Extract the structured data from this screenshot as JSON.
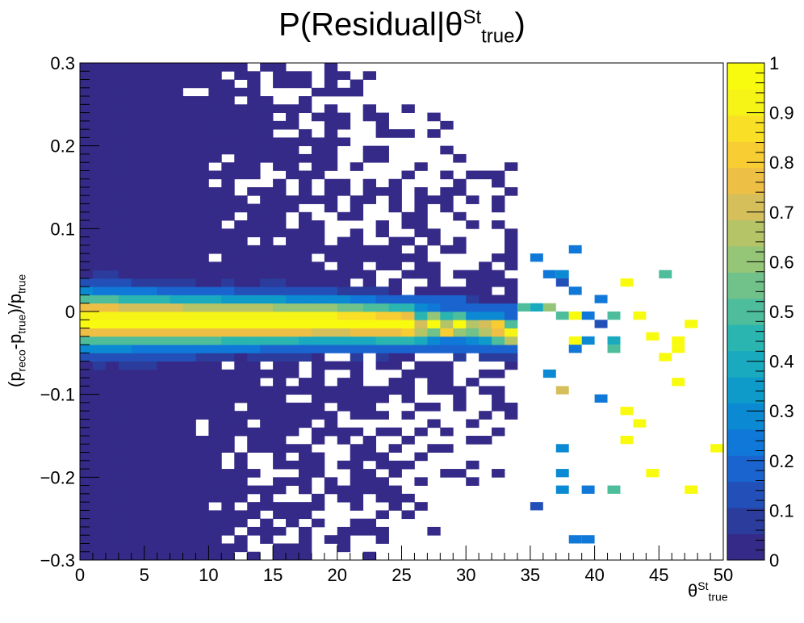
{
  "title_main": "P(Residual|θ",
  "title_sup": "St",
  "title_sub": "true",
  "title_close": ")",
  "ylabel": {
    "p1": "(p",
    "s1": "reco",
    "p2": "-p",
    "s2": "true",
    "p3": ")/p",
    "s3": "true"
  },
  "xlabel": {
    "base": "θ",
    "sup": "St",
    "sub": "true"
  },
  "chart_data": {
    "type": "heatmap",
    "title": "P(Residual|θSt true)",
    "xlim": [
      0,
      50
    ],
    "ylim": [
      -0.3,
      0.3
    ],
    "x_ticks": [
      "0",
      "5",
      "10",
      "15",
      "20",
      "25",
      "30",
      "35",
      "40",
      "45",
      "50"
    ],
    "x_tick_values": [
      0,
      5,
      10,
      15,
      20,
      25,
      30,
      35,
      40,
      45,
      50
    ],
    "y_ticks": [
      "−0.3",
      "−0.2",
      "−0.1",
      "0",
      "0.1",
      "0.2",
      "0.3"
    ],
    "y_tick_values": [
      -0.3,
      -0.2,
      -0.1,
      0,
      0.1,
      0.2,
      0.3
    ],
    "x_bins": 50,
    "y_bins": 60,
    "z_range": [
      0,
      1
    ],
    "colorbar_ticks": [
      "0",
      "0.1",
      "0.2",
      "0.3",
      "0.4",
      "0.5",
      "0.6",
      "0.7",
      "0.8",
      "0.9",
      "1"
    ],
    "colorbar_tick_values": [
      0,
      0.1,
      0.2,
      0.3,
      0.4,
      0.5,
      0.6,
      0.7,
      0.8,
      0.9,
      1
    ],
    "palette": [
      "#352a87",
      "#2b3c9c",
      "#2350b8",
      "#1a64d0",
      "#1078d8",
      "#0b8ad3",
      "#0e9bc9",
      "#19aac0",
      "#2bb5b1",
      "#4dbd9c",
      "#70c28a",
      "#95c577",
      "#b5c466",
      "#d4bf5a",
      "#eebf45",
      "#f8cd34",
      "#f9e026",
      "#f6f317",
      "#f9fb0e"
    ],
    "core": [
      {
        "x": 0,
        "y_center": -0.01,
        "width": 0.045
      },
      {
        "x": 10,
        "y_center": -0.012,
        "width": 0.04
      },
      {
        "x": 20,
        "y_center": -0.012,
        "width": 0.035
      },
      {
        "x": 30,
        "y_center": -0.018,
        "width": 0.03
      },
      {
        "x": 37,
        "y_center": -0.03,
        "width": 0.025
      }
    ],
    "bulk_extent_x": 34,
    "sparse_points": [
      {
        "x": 37.5,
        "y": 0.045,
        "z": 0.3
      },
      {
        "x": 45.5,
        "y": 0.045,
        "z": 0.5
      },
      {
        "x": 43.5,
        "y": -0.005,
        "z": 1.0
      },
      {
        "x": 42.5,
        "y": 0.035,
        "z": 1.0
      },
      {
        "x": 47.5,
        "y": -0.015,
        "z": 1.0
      },
      {
        "x": 44.5,
        "y": -0.03,
        "z": 1.0
      },
      {
        "x": 46.5,
        "y": -0.035,
        "z": 1.0
      },
      {
        "x": 45.5,
        "y": -0.055,
        "z": 1.0
      },
      {
        "x": 46.5,
        "y": -0.045,
        "z": 1.0
      },
      {
        "x": 46.5,
        "y": -0.085,
        "z": 1.0
      },
      {
        "x": 42.5,
        "y": -0.12,
        "z": 1.0
      },
      {
        "x": 43.5,
        "y": -0.135,
        "z": 1.0
      },
      {
        "x": 42.5,
        "y": -0.155,
        "z": 1.0
      },
      {
        "x": 49.5,
        "y": -0.165,
        "z": 1.0
      },
      {
        "x": 44.5,
        "y": -0.195,
        "z": 1.0
      },
      {
        "x": 47.5,
        "y": -0.215,
        "z": 1.0
      },
      {
        "x": 41.5,
        "y": -0.215,
        "z": 0.5
      },
      {
        "x": 39.5,
        "y": -0.215,
        "z": 0.2
      },
      {
        "x": 37.5,
        "y": -0.215,
        "z": 0.3
      },
      {
        "x": 37.5,
        "y": -0.195,
        "z": 0.3
      },
      {
        "x": 37.5,
        "y": -0.165,
        "z": 0.3
      },
      {
        "x": 37.5,
        "y": -0.095,
        "z": 0.7
      },
      {
        "x": 40.5,
        "y": -0.105,
        "z": 0.2
      },
      {
        "x": 38.5,
        "y": -0.045,
        "z": 0.2
      },
      {
        "x": 36.5,
        "y": -0.075,
        "z": 0.3
      },
      {
        "x": 39.5,
        "y": -0.275,
        "z": 0.2
      },
      {
        "x": 38.5,
        "y": -0.275,
        "z": 0.2
      },
      {
        "x": 35.5,
        "y": -0.235,
        "z": 0.1
      },
      {
        "x": 36.5,
        "y": 0.045,
        "z": 0.2
      },
      {
        "x": 37.5,
        "y": 0.035,
        "z": 0.1
      },
      {
        "x": 38.5,
        "y": 0.075,
        "z": 0.2
      },
      {
        "x": 35.5,
        "y": 0.065,
        "z": 0.2
      },
      {
        "x": 38.5,
        "y": 0.025,
        "z": 0.2
      },
      {
        "x": 40.5,
        "y": 0.015,
        "z": 0.2
      },
      {
        "x": 40.5,
        "y": -0.015,
        "z": 0.1
      },
      {
        "x": 41.5,
        "y": -0.005,
        "z": 0.5
      },
      {
        "x": 41.5,
        "y": -0.035,
        "z": 0.4
      },
      {
        "x": 41.5,
        "y": -0.045,
        "z": 0.5
      },
      {
        "x": 39.5,
        "y": -0.035,
        "z": 0.3
      },
      {
        "x": 38.5,
        "y": -0.035,
        "z": 1.0
      },
      {
        "x": 37.5,
        "y": -0.005,
        "z": 0.5
      },
      {
        "x": 36.5,
        "y": 0.005,
        "z": 0.6
      },
      {
        "x": 35.5,
        "y": 0.005,
        "z": 0.4
      },
      {
        "x": 34.5,
        "y": 0.005,
        "z": 0.5
      },
      {
        "x": 39.5,
        "y": -0.005,
        "z": 0.2
      },
      {
        "x": 38.5,
        "y": -0.005,
        "z": 1.0
      }
    ]
  }
}
